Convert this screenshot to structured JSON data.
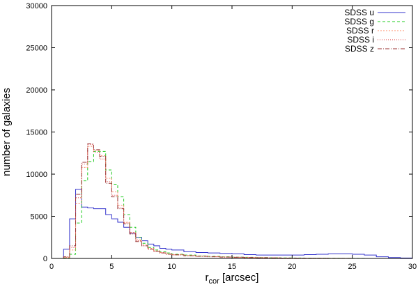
{
  "chart_data": {
    "type": "line",
    "style": "step histogram",
    "xlabel": "r",
    "xlabel_subscript": "cor",
    "xlabel_unit": " [arcsec]",
    "ylabel": "number of galaxies",
    "xlim": [
      0,
      30
    ],
    "ylim": [
      0,
      30000
    ],
    "xticks": [
      0,
      5,
      10,
      15,
      20,
      25,
      30
    ],
    "yticks": [
      0,
      5000,
      10000,
      15000,
      20000,
      25000,
      30000
    ],
    "grid": false,
    "legend_position": "top-right",
    "bin_width": 0.5,
    "bin_starts": [
      1.0,
      1.5,
      2.0,
      2.5,
      3.0,
      3.5,
      4.0,
      4.5,
      5.0,
      5.5,
      6.0,
      6.5,
      7.0,
      7.5,
      8.0,
      8.5,
      9.0,
      9.5,
      10.0,
      11.0,
      12.0,
      13.0,
      14.0,
      15.0,
      16.0,
      17.0,
      18.0,
      19.0,
      20.0,
      21.0,
      22.0,
      23.0,
      24.0,
      25.0,
      26.0,
      27.0,
      28.0,
      29.0
    ],
    "series": [
      {
        "name": "SDSS u",
        "color": "#3333cc",
        "dash": "",
        "values": [
          1100,
          4700,
          8200,
          6100,
          6000,
          5900,
          5900,
          5200,
          4700,
          4300,
          3700,
          3000,
          2500,
          2100,
          1700,
          1500,
          1200,
          1100,
          1000,
          800,
          700,
          650,
          600,
          550,
          450,
          400,
          400,
          400,
          400,
          450,
          500,
          550,
          550,
          500,
          400,
          200,
          100,
          50
        ]
      },
      {
        "name": "SDSS g",
        "color": "#22cc22",
        "dash": "4,3",
        "values": [
          50,
          500,
          4200,
          9200,
          11500,
          12700,
          12700,
          10500,
          8800,
          7300,
          5200,
          3700,
          2500,
          1800,
          1300,
          1000,
          800,
          650,
          500,
          400,
          300,
          250,
          200,
          150,
          130,
          100,
          80,
          60,
          50,
          40,
          30,
          20,
          15,
          10,
          5,
          0,
          0,
          0
        ]
      },
      {
        "name": "SDSS r",
        "color": "#ff8c69",
        "dash": "2,2",
        "values": [
          100,
          1000,
          6500,
          10800,
          13300,
          12800,
          12200,
          9500,
          7900,
          6300,
          4300,
          3100,
          2200,
          1600,
          1200,
          900,
          700,
          550,
          450,
          350,
          280,
          220,
          180,
          140,
          110,
          90,
          70,
          50,
          40,
          30,
          20,
          15,
          10,
          5,
          0,
          0,
          0,
          0
        ]
      },
      {
        "name": "SDSS i",
        "color": "#dd3333",
        "dash": "1,2",
        "values": [
          150,
          1300,
          7200,
          11200,
          13500,
          12600,
          11800,
          9100,
          7500,
          6000,
          4200,
          3000,
          2100,
          1500,
          1100,
          850,
          650,
          500,
          420,
          320,
          250,
          200,
          160,
          130,
          100,
          80,
          60,
          45,
          35,
          25,
          18,
          12,
          8,
          4,
          0,
          0,
          0,
          0
        ]
      },
      {
        "name": "SDSS z",
        "color": "#993333",
        "dash": "6,2,1,2",
        "values": [
          200,
          1500,
          7600,
          11400,
          13600,
          12900,
          12100,
          8900,
          7300,
          5900,
          4100,
          2900,
          2000,
          1500,
          1100,
          850,
          650,
          500,
          420,
          320,
          250,
          200,
          160,
          130,
          100,
          80,
          60,
          45,
          35,
          25,
          18,
          12,
          8,
          4,
          0,
          0,
          0,
          0
        ]
      }
    ]
  }
}
